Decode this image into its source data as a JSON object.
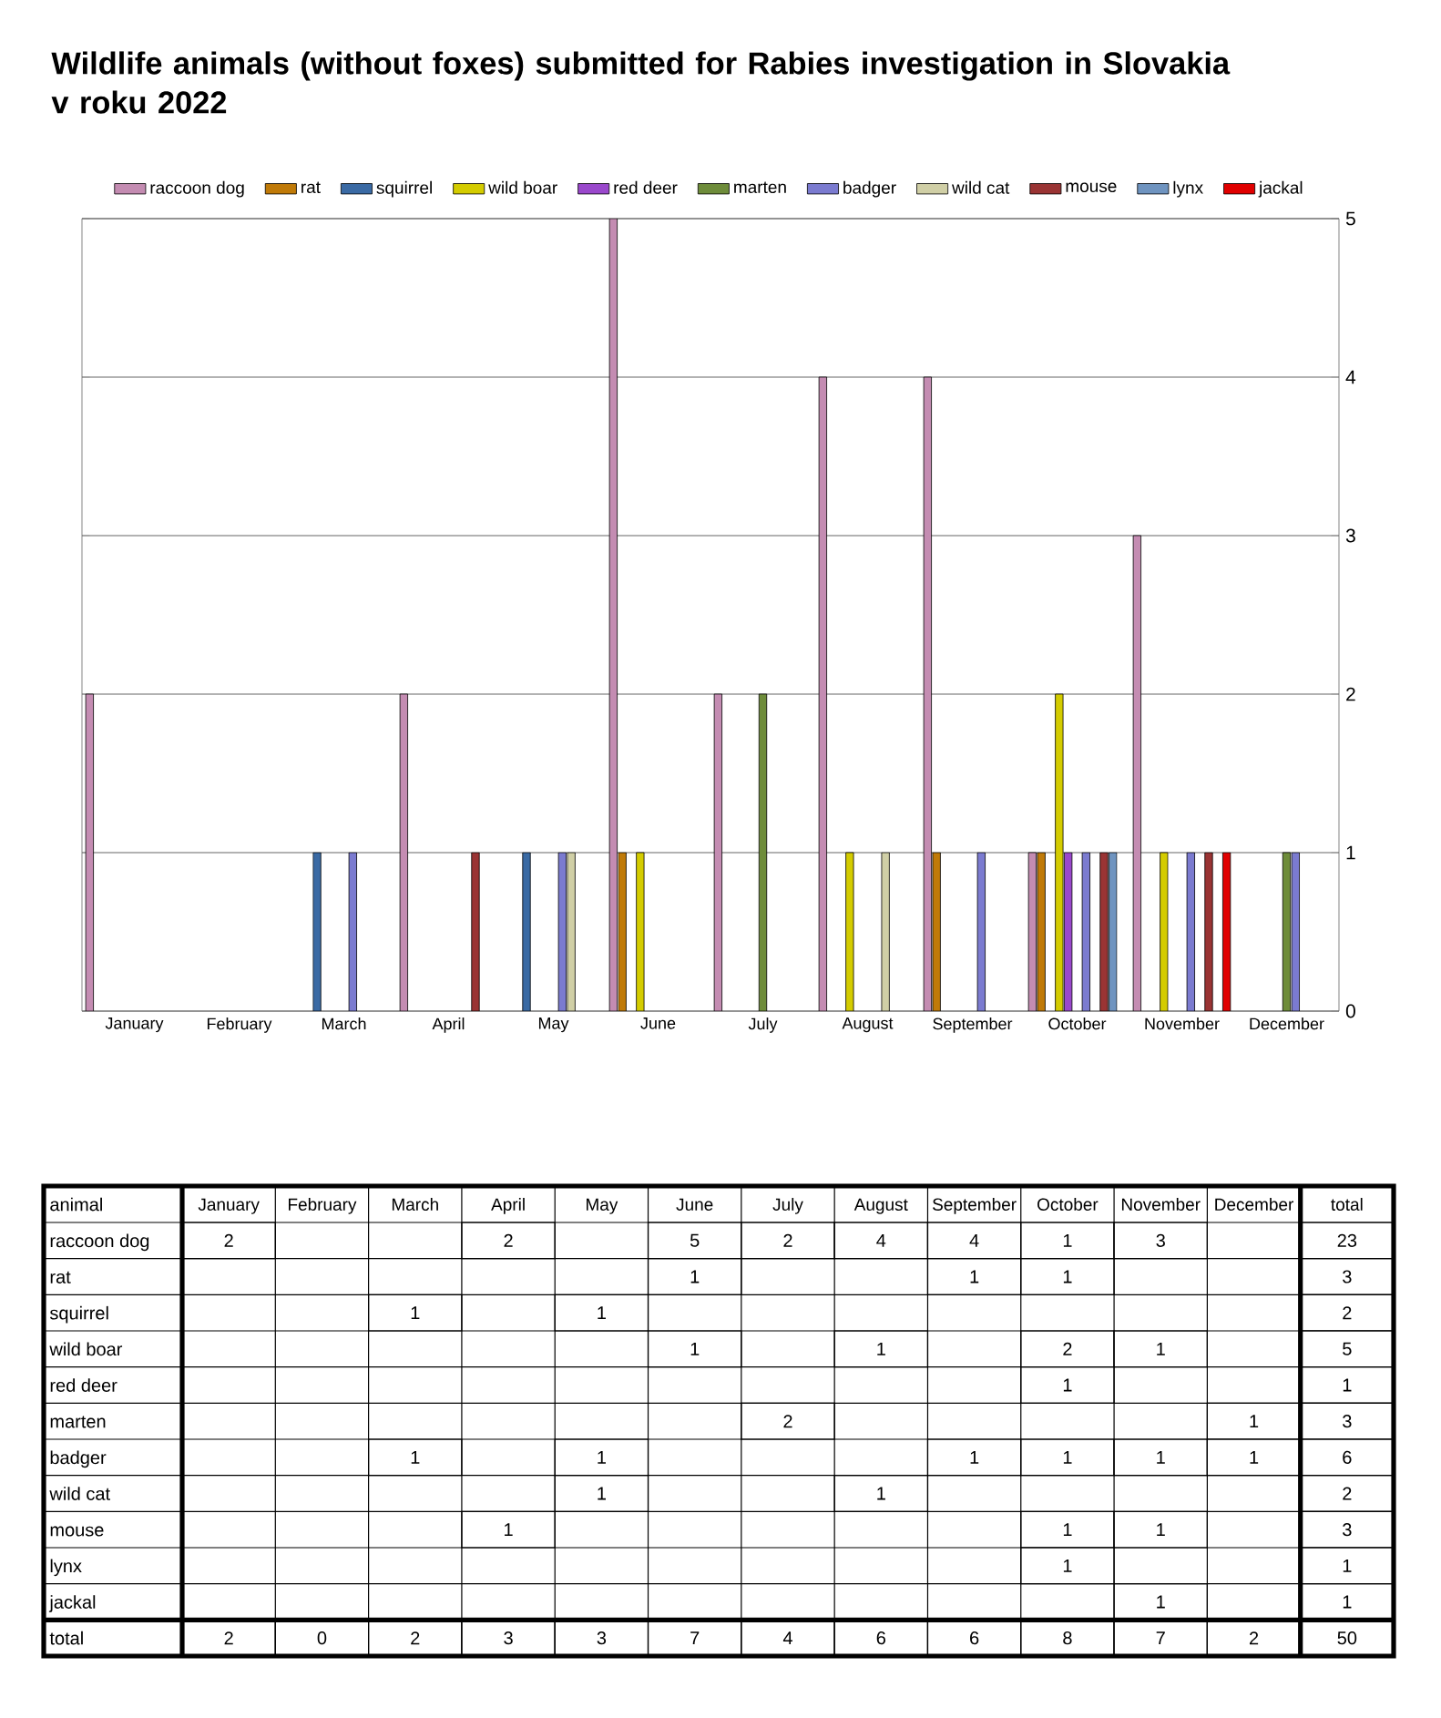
{
  "chart_data": [
    {
      "type": "bar",
      "title": "Wildlife animals (without foxes) submitted for Rabies investigation in Slovakia v roku 2022",
      "categories": [
        "January",
        "February",
        "March",
        "April",
        "May",
        "June",
        "July",
        "August",
        "September",
        "October",
        "November",
        "December"
      ],
      "series": [
        {
          "name": "raccoon dog",
          "color": "#c48cb2",
          "values": [
            2,
            null,
            null,
            2,
            null,
            5,
            2,
            4,
            4,
            1,
            3,
            null
          ]
        },
        {
          "name": "rat",
          "color": "#c07a08",
          "values": [
            null,
            null,
            null,
            null,
            null,
            1,
            null,
            null,
            1,
            1,
            null,
            null
          ]
        },
        {
          "name": "squirrel",
          "color": "#3a6aa4",
          "values": [
            null,
            null,
            1,
            null,
            1,
            null,
            null,
            null,
            null,
            null,
            null,
            null
          ]
        },
        {
          "name": "wild boar",
          "color": "#d4cc00",
          "values": [
            null,
            null,
            null,
            null,
            null,
            1,
            null,
            1,
            null,
            2,
            1,
            null
          ]
        },
        {
          "name": "red deer",
          "color": "#9a48cc",
          "values": [
            null,
            null,
            null,
            null,
            null,
            null,
            null,
            null,
            null,
            1,
            null,
            null
          ]
        },
        {
          "name": "marten",
          "color": "#6e8c3a",
          "values": [
            null,
            null,
            null,
            null,
            null,
            null,
            2,
            null,
            null,
            null,
            null,
            1
          ]
        },
        {
          "name": "badger",
          "color": "#7b7bd0",
          "values": [
            null,
            null,
            1,
            null,
            1,
            null,
            null,
            null,
            1,
            1,
            1,
            1
          ]
        },
        {
          "name": "wild cat",
          "color": "#d0cfa6",
          "values": [
            null,
            null,
            null,
            null,
            1,
            null,
            null,
            1,
            null,
            null,
            null,
            null
          ]
        },
        {
          "name": "mouse",
          "color": "#9a3434",
          "values": [
            null,
            null,
            null,
            1,
            null,
            null,
            null,
            null,
            null,
            1,
            1,
            null
          ]
        },
        {
          "name": "lynx",
          "color": "#6f94c0",
          "values": [
            null,
            null,
            null,
            null,
            null,
            null,
            null,
            null,
            null,
            1,
            null,
            null
          ]
        },
        {
          "name": "jackal",
          "color": "#e00000",
          "values": [
            null,
            null,
            null,
            null,
            null,
            null,
            null,
            null,
            null,
            null,
            1,
            null
          ]
        }
      ],
      "ylim": [
        0,
        5
      ],
      "yticks": [
        0,
        1,
        2,
        3,
        4,
        5
      ],
      "grid": "y",
      "legend": "top"
    },
    {
      "type": "heatmap",
      "ylabel": "animal",
      "categories": [
        "January",
        "February",
        "March",
        "April",
        "May",
        "June",
        "July",
        "August",
        "September",
        "October",
        "November",
        "December",
        "total"
      ],
      "y_categories": [
        "raccoon dog",
        "rat",
        "squirrel",
        "wild boar",
        "red deer",
        "marten",
        "badger",
        "wild cat",
        "mouse",
        "lynx",
        "jackal",
        "total"
      ],
      "cells": [
        [
          2,
          null,
          null,
          2,
          null,
          5,
          2,
          4,
          4,
          1,
          3,
          null,
          23
        ],
        [
          null,
          null,
          null,
          null,
          null,
          1,
          null,
          null,
          1,
          1,
          null,
          null,
          3
        ],
        [
          null,
          null,
          1,
          null,
          1,
          null,
          null,
          null,
          null,
          null,
          null,
          null,
          2
        ],
        [
          null,
          null,
          null,
          null,
          null,
          1,
          null,
          1,
          null,
          2,
          1,
          null,
          5
        ],
        [
          null,
          null,
          null,
          null,
          null,
          null,
          null,
          null,
          null,
          1,
          null,
          null,
          1
        ],
        [
          null,
          null,
          null,
          null,
          null,
          null,
          2,
          null,
          null,
          null,
          null,
          1,
          3
        ],
        [
          null,
          null,
          1,
          null,
          1,
          null,
          null,
          null,
          1,
          1,
          1,
          1,
          6
        ],
        [
          null,
          null,
          null,
          null,
          1,
          null,
          null,
          1,
          null,
          null,
          null,
          null,
          2
        ],
        [
          null,
          null,
          null,
          1,
          null,
          null,
          null,
          null,
          null,
          1,
          1,
          null,
          3
        ],
        [
          null,
          null,
          null,
          null,
          null,
          null,
          null,
          null,
          null,
          1,
          null,
          null,
          1
        ],
        [
          null,
          null,
          null,
          null,
          null,
          null,
          null,
          null,
          null,
          null,
          1,
          null,
          1
        ],
        [
          2,
          0,
          2,
          3,
          3,
          7,
          4,
          6,
          6,
          8,
          7,
          2,
          50
        ]
      ],
      "data_labels": true
    }
  ]
}
